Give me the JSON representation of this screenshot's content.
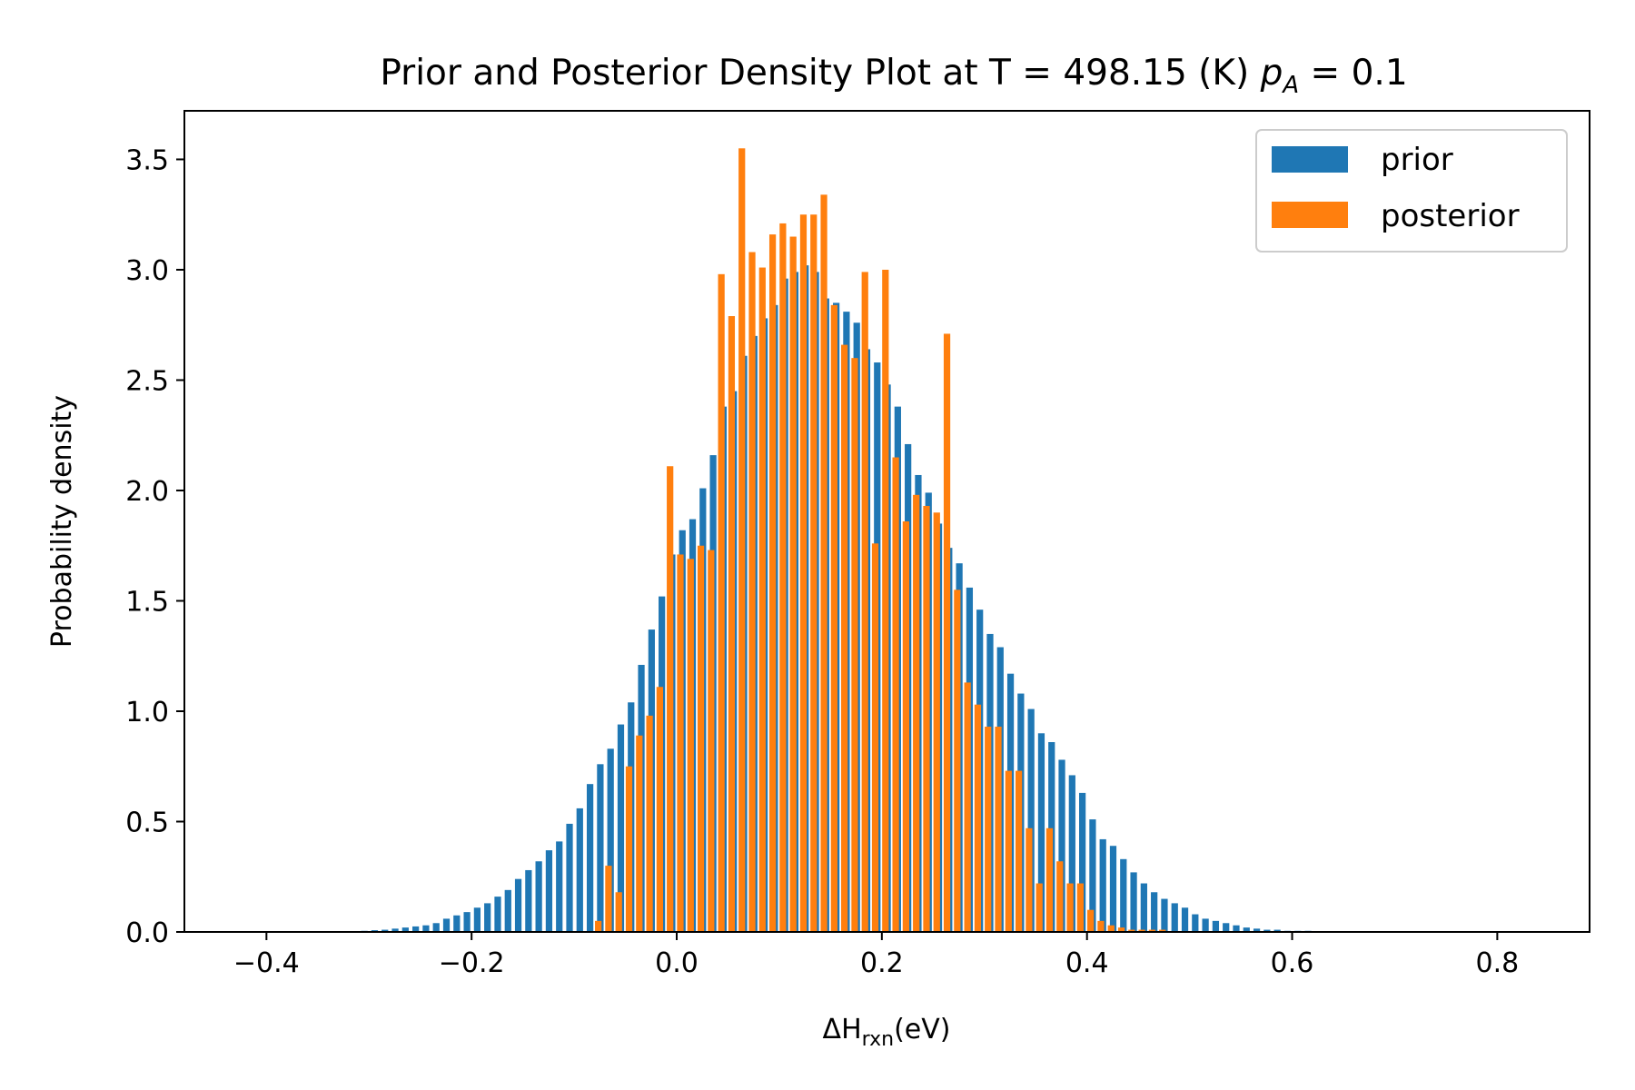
{
  "chart_data": {
    "type": "bar",
    "title": "Prior and Posterior Density Plot at T = 498.15 (K) ",
    "title_math": "p",
    "title_math_sub": "A",
    "title_tail": " = 0.1",
    "xlabel": "ΔH",
    "xlabel_sub": "rxn",
    "xlabel_tail": "(eV)",
    "ylabel": "Probability density",
    "xlim": [
      -0.48,
      0.89
    ],
    "ylim": [
      0,
      3.72
    ],
    "xticks": [
      -0.4,
      -0.2,
      0.0,
      0.2,
      0.4,
      0.6,
      0.8
    ],
    "xtick_labels": [
      "−0.4",
      "−0.2",
      "0.0",
      "0.2",
      "0.4",
      "0.6",
      "0.8"
    ],
    "yticks": [
      0.0,
      0.5,
      1.0,
      1.5,
      2.0,
      2.5,
      3.0,
      3.5
    ],
    "ytick_labels": [
      "0.0",
      "0.5",
      "1.0",
      "1.5",
      "2.0",
      "2.5",
      "3.0",
      "3.5"
    ],
    "grid": false,
    "legend_position": "top-right",
    "bin_width": 0.02,
    "bar_width": 0.0064,
    "series": [
      {
        "name": "prior",
        "color": "#1f77b4",
        "offset": -0.0045,
        "x": [
          -0.3,
          -0.29,
          -0.28,
          -0.27,
          -0.26,
          -0.25,
          -0.24,
          -0.23,
          -0.22,
          -0.21,
          -0.2,
          -0.19,
          -0.18,
          -0.17,
          -0.16,
          -0.15,
          -0.14,
          -0.13,
          -0.12,
          -0.11,
          -0.1,
          -0.09,
          -0.08,
          -0.07,
          -0.06,
          -0.05,
          -0.04,
          -0.03,
          -0.02,
          -0.01,
          0.0,
          0.01,
          0.02,
          0.03,
          0.04,
          0.05,
          0.06,
          0.07,
          0.08,
          0.09,
          0.1,
          0.11,
          0.12,
          0.13,
          0.14,
          0.15,
          0.16,
          0.17,
          0.18,
          0.19,
          0.2,
          0.21,
          0.22,
          0.23,
          0.24,
          0.25,
          0.26,
          0.27,
          0.28,
          0.29,
          0.3,
          0.31,
          0.32,
          0.33,
          0.34,
          0.35,
          0.36,
          0.37,
          0.38,
          0.39,
          0.4,
          0.41,
          0.42,
          0.43,
          0.44,
          0.45,
          0.46,
          0.47,
          0.48,
          0.49,
          0.5,
          0.51,
          0.52,
          0.53,
          0.54,
          0.55,
          0.56,
          0.57,
          0.58,
          0.59,
          0.6,
          0.61,
          0.62,
          0.63,
          0.64,
          0.65,
          0.66
        ],
        "values": [
          0.005,
          0.008,
          0.01,
          0.015,
          0.02,
          0.025,
          0.03,
          0.04,
          0.06,
          0.075,
          0.09,
          0.11,
          0.13,
          0.16,
          0.19,
          0.24,
          0.28,
          0.32,
          0.37,
          0.41,
          0.49,
          0.56,
          0.67,
          0.76,
          0.83,
          0.94,
          1.04,
          1.21,
          1.37,
          1.52,
          1.71,
          1.82,
          1.87,
          2.01,
          2.16,
          2.38,
          2.45,
          2.61,
          2.7,
          2.78,
          2.84,
          2.96,
          2.99,
          3.02,
          2.99,
          2.87,
          2.85,
          2.81,
          2.76,
          2.64,
          2.58,
          2.48,
          2.38,
          2.21,
          2.07,
          1.99,
          1.85,
          1.74,
          1.67,
          1.56,
          1.46,
          1.35,
          1.29,
          1.17,
          1.08,
          1.01,
          0.9,
          0.86,
          0.78,
          0.71,
          0.63,
          0.51,
          0.42,
          0.39,
          0.33,
          0.27,
          0.22,
          0.18,
          0.15,
          0.13,
          0.11,
          0.08,
          0.06,
          0.05,
          0.04,
          0.03,
          0.02,
          0.015,
          0.01,
          0.01,
          0.005,
          0.005,
          0.005,
          0.003,
          0.003,
          0.002,
          0.002
        ]
      },
      {
        "name": "posterior",
        "color": "#ff7f0e",
        "offset": 0.0035,
        "x": [
          -0.08,
          -0.07,
          -0.06,
          -0.05,
          -0.04,
          -0.03,
          -0.02,
          -0.01,
          0.0,
          0.01,
          0.02,
          0.03,
          0.04,
          0.05,
          0.06,
          0.07,
          0.08,
          0.09,
          0.1,
          0.11,
          0.12,
          0.13,
          0.14,
          0.15,
          0.16,
          0.17,
          0.18,
          0.19,
          0.2,
          0.21,
          0.22,
          0.23,
          0.24,
          0.25,
          0.26,
          0.27,
          0.28,
          0.29,
          0.3,
          0.31,
          0.32,
          0.33,
          0.34,
          0.35,
          0.36,
          0.37,
          0.38,
          0.39,
          0.4,
          0.41,
          0.42,
          0.43,
          0.44,
          0.45,
          0.46,
          0.47
        ],
        "values": [
          0.05,
          0.3,
          0.18,
          0.75,
          0.89,
          0.98,
          1.11,
          2.11,
          1.71,
          1.69,
          1.75,
          1.73,
          2.98,
          2.79,
          3.55,
          3.08,
          3.01,
          3.16,
          3.21,
          3.15,
          3.25,
          3.25,
          3.34,
          2.84,
          2.66,
          2.6,
          2.99,
          1.76,
          3.0,
          2.15,
          1.86,
          1.98,
          1.93,
          1.9,
          2.71,
          1.55,
          1.13,
          1.03,
          0.93,
          0.93,
          0.73,
          0.73,
          0.47,
          0.22,
          0.47,
          0.32,
          0.22,
          0.22,
          0.1,
          0.05,
          0.03,
          0.02,
          0.01,
          0.01,
          0.01,
          0.01
        ]
      }
    ]
  }
}
